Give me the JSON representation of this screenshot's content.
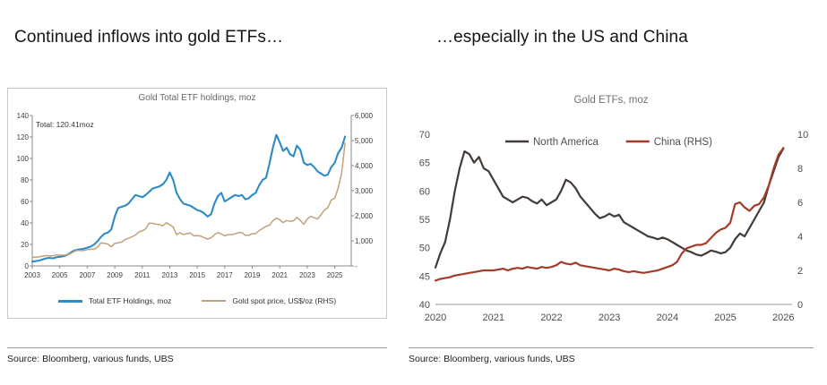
{
  "panel_left": {
    "heading": "Continued inflows into gold ETFs…",
    "source": "Source: Bloomberg, various funds, UBS"
  },
  "panel_right": {
    "heading": "…especially in the US and China",
    "source": "Source: Bloomberg, various funds, UBS"
  },
  "chart_data": [
    {
      "type": "line",
      "title": "Gold Total ETF holdings, moz",
      "annotation": "Total: 120.41moz",
      "x_start": 2003.0,
      "x_step": 0.25,
      "x_min": 2003,
      "x_max": 2026.2,
      "x_ticks": {
        "values": [
          2003,
          2005,
          2007,
          2009,
          2011,
          2013,
          2015,
          2017,
          2019,
          2021,
          2023,
          2025
        ],
        "labels": [
          "2003",
          "2005",
          "2007",
          "2009",
          "2011",
          "2013",
          "2015",
          "2017",
          "2019",
          "2021",
          "2023",
          "2025"
        ]
      },
      "left_axis": {
        "min": 0,
        "max": 140,
        "ticks": [
          0,
          20,
          40,
          60,
          80,
          100,
          120,
          140
        ],
        "labels": [
          "0",
          "20",
          "40",
          "60",
          "80",
          "100",
          "120",
          "140"
        ]
      },
      "right_axis": {
        "min": 0,
        "max": 6000,
        "ticks": [
          0,
          1000,
          2000,
          3000,
          4000,
          5000,
          6000
        ],
        "labels": [
          "-",
          "1,000",
          "2,000",
          "3,000",
          "4,000",
          "5,000",
          "6,000"
        ]
      },
      "series": [
        {
          "name": "Total ETF Holdings, moz",
          "axis": "left",
          "color": "#2e8bc5",
          "width": 2.1,
          "values": [
            4,
            4.5,
            5,
            6,
            7,
            7.5,
            7,
            8,
            8.5,
            9,
            10,
            12,
            14,
            15,
            15.5,
            16,
            17,
            18,
            20,
            23,
            27,
            30,
            31,
            34,
            46,
            54,
            55,
            56,
            58,
            62,
            66,
            65,
            64,
            66,
            69,
            72,
            73,
            74,
            76,
            80,
            87,
            80,
            68,
            62,
            58,
            57,
            56,
            54,
            52,
            51,
            49,
            46,
            48,
            58,
            65,
            68,
            60,
            62,
            64,
            66,
            65,
            66,
            62,
            63,
            66,
            68,
            75,
            80,
            82,
            95,
            110,
            122,
            115,
            107,
            110,
            104,
            102,
            112,
            108,
            96,
            94,
            95,
            92,
            88,
            86,
            84,
            85,
            92,
            96,
            105,
            110,
            120.41
          ]
        },
        {
          "name": "Gold spot price, US$/oz (RHS)",
          "axis": "right",
          "color": "#c1a17b",
          "width": 1.5,
          "values": [
            350,
            345,
            360,
            390,
            410,
            395,
            400,
            440,
            430,
            428,
            440,
            480,
            560,
            620,
            610,
            615,
            650,
            665,
            665,
            750,
            920,
            900,
            870,
            760,
            900,
            920,
            950,
            1050,
            1100,
            1160,
            1230,
            1350,
            1400,
            1480,
            1700,
            1700,
            1660,
            1650,
            1600,
            1720,
            1650,
            1550,
            1250,
            1320,
            1250,
            1290,
            1310,
            1200,
            1210,
            1190,
            1130,
            1070,
            1120,
            1240,
            1330,
            1270,
            1200,
            1250,
            1250,
            1280,
            1330,
            1330,
            1220,
            1220,
            1290,
            1290,
            1410,
            1490,
            1580,
            1620,
            1800,
            1900,
            1850,
            1730,
            1810,
            1780,
            1800,
            1940,
            1810,
            1660,
            1870,
            1980,
            1920,
            1870,
            2040,
            2230,
            2330,
            2630,
            2700,
            3100,
            3700,
            4900
          ]
        }
      ]
    },
    {
      "type": "line",
      "title": "Gold ETFs, moz",
      "x_start": 2020.0,
      "x_step": 0.0833333,
      "x_min": 2020,
      "x_max": 2026.15,
      "x_ticks": {
        "values": [
          2020,
          2021,
          2022,
          2023,
          2024,
          2025,
          2026
        ],
        "labels": [
          "2020",
          "2021",
          "2022",
          "2023",
          "2024",
          "2025",
          "2026"
        ]
      },
      "left_axis": {
        "min": 40,
        "max": 70,
        "ticks": [
          40,
          45,
          50,
          55,
          60,
          65,
          70
        ],
        "labels": [
          "40",
          "45",
          "50",
          "55",
          "60",
          "65",
          "70"
        ]
      },
      "right_axis": {
        "min": 0,
        "max": 10,
        "ticks": [
          0,
          2,
          4,
          6,
          8,
          10
        ],
        "labels": [
          "0",
          "2",
          "4",
          "6",
          "8",
          "10"
        ]
      },
      "series": [
        {
          "name": "North America",
          "axis": "left",
          "color": "#423b37",
          "width": 2.2,
          "values": [
            46.5,
            49,
            51,
            55,
            60,
            64,
            67,
            66.5,
            65,
            66,
            64,
            63.5,
            62,
            60.5,
            59,
            58.5,
            58,
            58.5,
            59,
            58.8,
            58.2,
            57.8,
            58.5,
            57.5,
            58,
            58.5,
            60,
            62,
            61.5,
            60.5,
            59,
            58,
            57,
            56,
            55.2,
            55.5,
            56,
            55.5,
            55.8,
            54.5,
            54,
            53.5,
            53,
            52.5,
            52,
            51.8,
            51.5,
            51.8,
            51.5,
            51,
            50.5,
            50,
            49.5,
            49.2,
            48.8,
            48.6,
            49,
            49.5,
            49.3,
            49,
            49.2,
            50,
            51.5,
            52.5,
            52,
            53.5,
            55,
            56.5,
            58,
            61,
            63.5,
            66,
            67.5
          ]
        },
        {
          "name": "China (RHS)",
          "axis": "right",
          "color": "#a23b28",
          "width": 2.2,
          "values": [
            1.4,
            1.5,
            1.55,
            1.6,
            1.7,
            1.75,
            1.8,
            1.85,
            1.9,
            1.95,
            2.0,
            2.0,
            2.0,
            2.05,
            2.1,
            2.0,
            2.1,
            2.15,
            2.1,
            2.2,
            2.15,
            2.1,
            2.2,
            2.15,
            2.2,
            2.3,
            2.5,
            2.4,
            2.35,
            2.45,
            2.3,
            2.25,
            2.2,
            2.15,
            2.1,
            2.05,
            2.0,
            2.1,
            2.05,
            1.95,
            1.9,
            1.95,
            1.9,
            1.85,
            1.9,
            1.95,
            2.0,
            2.1,
            2.2,
            2.3,
            2.5,
            3.0,
            3.3,
            3.4,
            3.5,
            3.5,
            3.6,
            3.9,
            4.2,
            4.4,
            4.5,
            4.8,
            5.9,
            6.0,
            5.7,
            5.5,
            5.8,
            5.9,
            6.3,
            7.0,
            8.0,
            8.8,
            9.2
          ]
        }
      ]
    }
  ]
}
